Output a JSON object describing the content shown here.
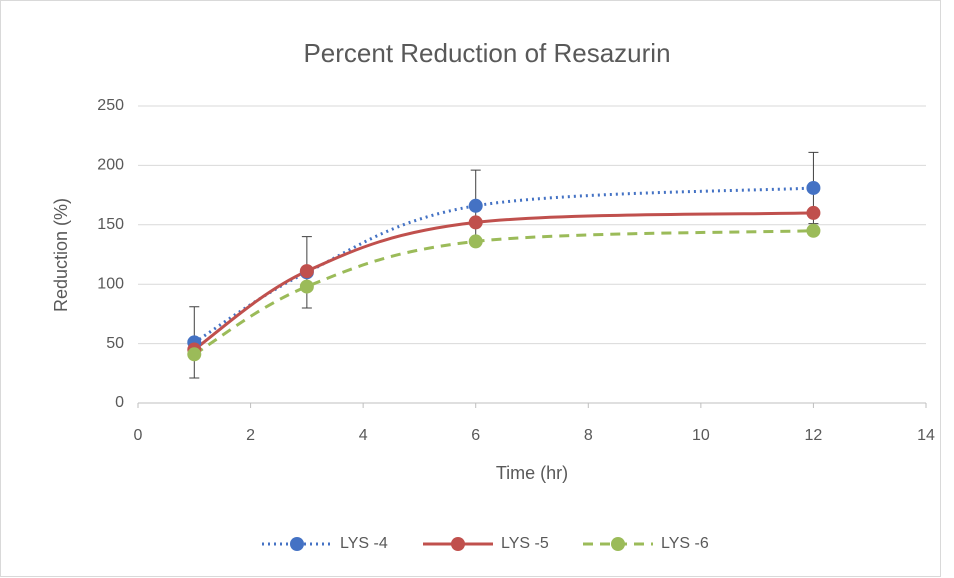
{
  "chart_data": {
    "type": "line",
    "title": "Percent Reduction of Resazurin",
    "x_label": "Time (hr)",
    "y_label": "Reduction (%)",
    "x": [
      1,
      3,
      6,
      12
    ],
    "series": [
      {
        "name": "LYS -4",
        "color": "#4472c4",
        "dash": "dotted",
        "values": [
          51,
          110,
          166,
          181
        ],
        "errors": [
          30,
          30,
          30,
          30
        ]
      },
      {
        "name": "LYS -5",
        "color": "#c0504d",
        "dash": "solid",
        "values": [
          45,
          111,
          152,
          160
        ]
      },
      {
        "name": "LYS -6",
        "color": "#9bbb59",
        "dash": "dashed",
        "values": [
          41,
          98,
          136,
          145
        ]
      }
    ],
    "xlim": [
      0,
      14
    ],
    "xticks": [
      0,
      2,
      4,
      6,
      8,
      10,
      12,
      14
    ],
    "ylim": [
      0,
      250
    ],
    "yticks": [
      0,
      50,
      100,
      150,
      200,
      250
    ],
    "grid": true,
    "smooth": true,
    "legend": "bottom"
  }
}
